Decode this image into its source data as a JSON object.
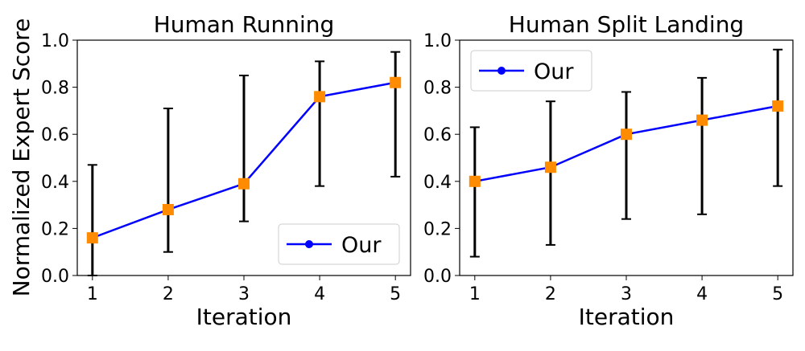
{
  "ylabel": "Normalized Expert Score",
  "chart_data": [
    {
      "type": "line",
      "title": "Human Running",
      "xlabel": "Iteration",
      "ylabel": "Normalized Expert Score",
      "x": [
        1,
        2,
        3,
        4,
        5
      ],
      "xlim": [
        0.8,
        5.2
      ],
      "ylim": [
        0.0,
        1.0
      ],
      "xticks": [
        "1",
        "2",
        "3",
        "4",
        "5"
      ],
      "yticks": [
        "0.0",
        "0.2",
        "0.4",
        "0.6",
        "0.8",
        "1.0"
      ],
      "grid": false,
      "legend_position": "lower right",
      "series": [
        {
          "name": "Our",
          "values": [
            0.16,
            0.28,
            0.39,
            0.76,
            0.82
          ],
          "err_low": [
            0.0,
            0.1,
            0.23,
            0.38,
            0.42
          ],
          "err_high": [
            0.47,
            0.71,
            0.85,
            0.91,
            0.95
          ],
          "line_color": "#0000ff",
          "marker_color": "#ff8c00"
        }
      ]
    },
    {
      "type": "line",
      "title": "Human Split Landing",
      "xlabel": "Iteration",
      "ylabel": "",
      "x": [
        1,
        2,
        3,
        4,
        5
      ],
      "xlim": [
        0.8,
        5.2
      ],
      "ylim": [
        0.0,
        1.0
      ],
      "xticks": [
        "1",
        "2",
        "3",
        "4",
        "5"
      ],
      "yticks": [
        "0.0",
        "0.2",
        "0.4",
        "0.6",
        "0.8",
        "1.0"
      ],
      "grid": false,
      "legend_position": "upper left",
      "series": [
        {
          "name": "Our",
          "values": [
            0.4,
            0.46,
            0.6,
            0.66,
            0.72
          ],
          "err_low": [
            0.08,
            0.13,
            0.24,
            0.26,
            0.38
          ],
          "err_high": [
            0.63,
            0.74,
            0.78,
            0.84,
            0.96
          ],
          "line_color": "#0000ff",
          "marker_color": "#ff8c00"
        }
      ]
    }
  ]
}
